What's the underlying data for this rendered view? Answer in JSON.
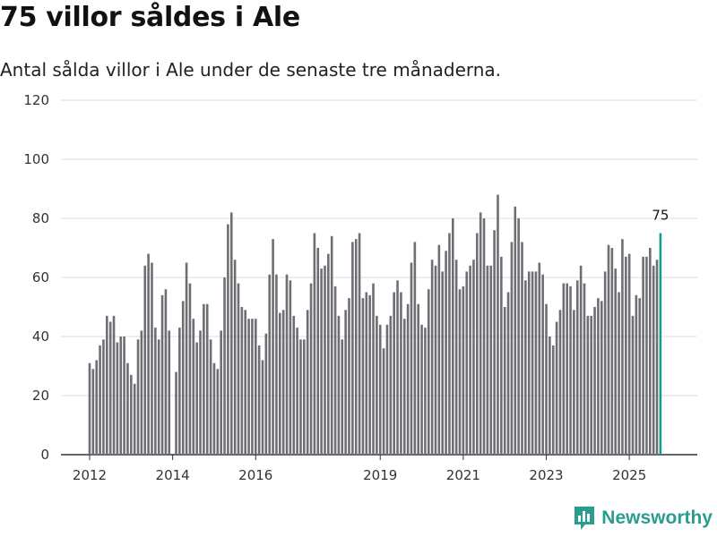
{
  "header": {
    "title": "75 villor såldes i Ale",
    "subtitle": "Antal sålda villor i Ale under de senaste tre månaderna."
  },
  "brand": {
    "name": "Newsworthy",
    "icon": "newsworthy-logo-icon"
  },
  "colors": {
    "bar": "#6f6e74",
    "highlight": "#1a9a8c",
    "grid": "#dddddd",
    "axis": "#333333",
    "brand": "#2a9d8f"
  },
  "chart_data": {
    "type": "bar",
    "title": "75 villor såldes i Ale",
    "subtitle": "Antal sålda villor i Ale under de senaste tre månaderna.",
    "xlabel": "",
    "ylabel": "",
    "ylim": [
      0,
      120
    ],
    "yticks": [
      0,
      20,
      40,
      60,
      80,
      100,
      120
    ],
    "xticks": [
      {
        "label": "2012",
        "index": 0
      },
      {
        "label": "2014",
        "index": 24
      },
      {
        "label": "2016",
        "index": 48
      },
      {
        "label": "2019",
        "index": 84
      },
      {
        "label": "2021",
        "index": 108
      },
      {
        "label": "2023",
        "index": 132
      },
      {
        "label": "2025",
        "index": 156
      }
    ],
    "grid": true,
    "highlight_label": "75",
    "values": [
      31,
      29,
      32,
      37,
      39,
      47,
      45,
      47,
      38,
      40,
      40,
      31,
      27,
      24,
      39,
      42,
      64,
      68,
      65,
      43,
      39,
      54,
      56,
      42,
      0,
      28,
      43,
      52,
      65,
      58,
      46,
      38,
      42,
      51,
      51,
      39,
      31,
      29,
      42,
      60,
      78,
      82,
      66,
      58,
      50,
      49,
      46,
      46,
      46,
      37,
      32,
      41,
      61,
      73,
      61,
      48,
      49,
      61,
      59,
      47,
      43,
      39,
      39,
      49,
      58,
      75,
      70,
      63,
      64,
      68,
      74,
      57,
      47,
      39,
      49,
      53,
      72,
      73,
      75,
      53,
      55,
      54,
      58,
      47,
      44,
      36,
      44,
      47,
      55,
      59,
      55,
      46,
      51,
      65,
      72,
      51,
      44,
      43,
      56,
      66,
      64,
      71,
      62,
      69,
      75,
      80,
      66,
      56,
      57,
      62,
      64,
      66,
      75,
      82,
      80,
      64,
      64,
      76,
      88,
      67,
      50,
      55,
      72,
      84,
      80,
      72,
      59,
      62,
      62,
      62,
      65,
      61,
      51,
      40,
      37,
      45,
      49,
      58,
      58,
      57,
      49,
      59,
      64,
      58,
      47,
      47,
      50,
      53,
      52,
      62,
      71,
      70,
      63,
      55,
      73,
      67,
      68,
      47,
      54,
      53,
      67,
      67,
      70,
      64,
      66,
      75
    ]
  }
}
